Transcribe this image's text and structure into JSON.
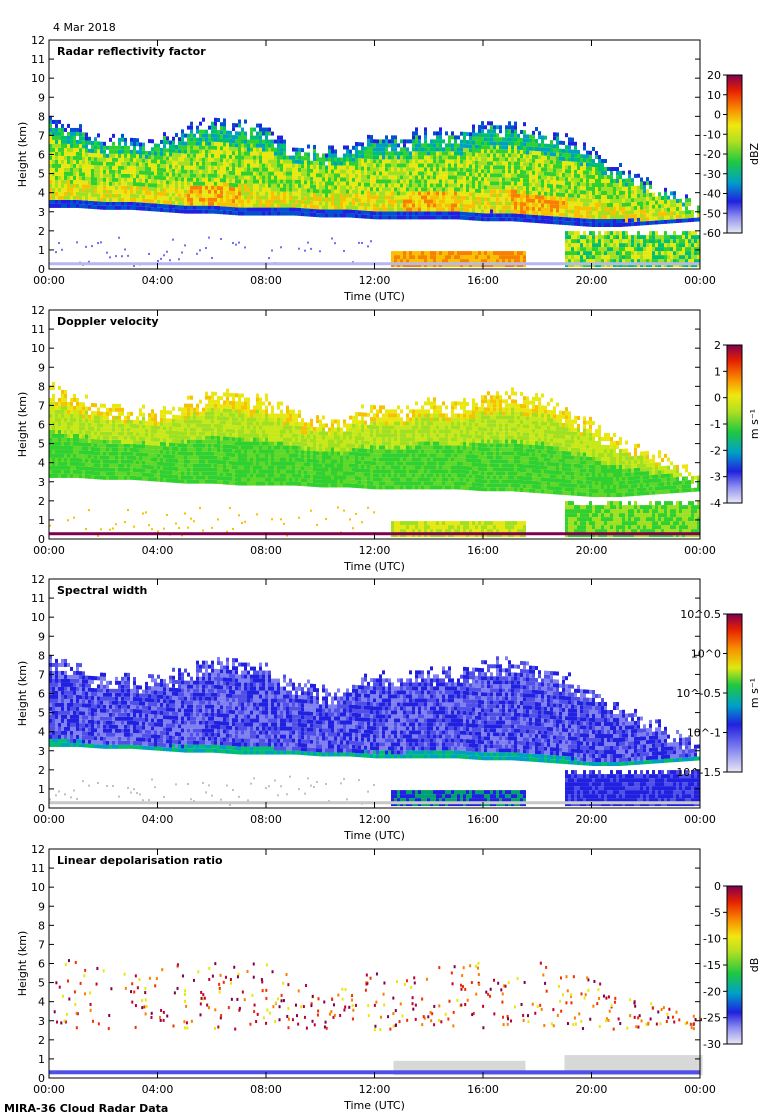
{
  "date_label": "4 Mar 2018",
  "footer": "MIRA-36 Cloud Radar Data",
  "colors": {
    "palette": [
      "#e0e0f0",
      "#b8b8f0",
      "#7070f0",
      "#2020e0",
      "#0050d0",
      "#00a0c0",
      "#00c070",
      "#30d030",
      "#a0e020",
      "#e8e810",
      "#f8c000",
      "#f88000",
      "#f03000",
      "#c00030",
      "#800050"
    ]
  },
  "chart_data": [
    {
      "type": "heatmap",
      "title": "Radar reflectivity factor",
      "xlabel": "Time (UTC)",
      "ylabel": "Height (km)",
      "xticks": [
        "00:00",
        "04:00",
        "08:00",
        "12:00",
        "16:00",
        "20:00",
        "00:00"
      ],
      "yticks": [
        "0",
        "1",
        "2",
        "3",
        "4",
        "5",
        "6",
        "7",
        "8",
        "9",
        "10",
        "11",
        "12"
      ],
      "ylim": [
        0,
        12
      ],
      "xlim_hours": [
        0,
        24
      ],
      "colorbar": {
        "label": "dBZ",
        "ticks": [
          "20",
          "10",
          "0",
          "-10",
          "-20",
          "-30",
          "-40",
          "-50",
          "-60"
        ]
      },
      "field": "Z"
    },
    {
      "type": "heatmap",
      "title": "Doppler velocity",
      "xlabel": "Time (UTC)",
      "ylabel": "Height (km)",
      "xticks": [
        "00:00",
        "04:00",
        "08:00",
        "12:00",
        "16:00",
        "20:00",
        "00:00"
      ],
      "yticks": [
        "0",
        "1",
        "2",
        "3",
        "4",
        "5",
        "6",
        "7",
        "8",
        "9",
        "10",
        "11",
        "12"
      ],
      "ylim": [
        0,
        12
      ],
      "xlim_hours": [
        0,
        24
      ],
      "colorbar": {
        "label": "m s⁻¹",
        "ticks": [
          "2",
          "1",
          "0",
          "-1",
          "-2",
          "-3",
          "-4"
        ]
      },
      "field": "V"
    },
    {
      "type": "heatmap",
      "title": "Spectral width",
      "xlabel": "Time (UTC)",
      "ylabel": "Height (km)",
      "xticks": [
        "00:00",
        "04:00",
        "08:00",
        "12:00",
        "16:00",
        "20:00",
        "00:00"
      ],
      "yticks": [
        "0",
        "1",
        "2",
        "3",
        "4",
        "5",
        "6",
        "7",
        "8",
        "9",
        "10",
        "11",
        "12"
      ],
      "ylim": [
        0,
        12
      ],
      "xlim_hours": [
        0,
        24
      ],
      "colorbar": {
        "label": "m s⁻¹",
        "ticks": [
          "10^0.5",
          "10^0",
          "10^-0.5",
          "10^-1",
          "10^-1.5"
        ]
      },
      "field": "W"
    },
    {
      "type": "heatmap",
      "title": "Linear depolarisation ratio",
      "xlabel": "Time (UTC)",
      "ylabel": "Height (km)",
      "xticks": [
        "00:00",
        "04:00",
        "08:00",
        "12:00",
        "16:00",
        "20:00",
        "00:00"
      ],
      "yticks": [
        "0",
        "1",
        "2",
        "3",
        "4",
        "5",
        "6",
        "7",
        "8",
        "9",
        "10",
        "11",
        "12"
      ],
      "ylim": [
        0,
        12
      ],
      "xlim_hours": [
        0,
        24
      ],
      "colorbar": {
        "label": "dB",
        "ticks": [
          "0",
          "-5",
          "-10",
          "-15",
          "-20",
          "-25",
          "-30"
        ]
      },
      "field": "LDR"
    }
  ],
  "cloud_profile": {
    "time_hours": [
      0,
      1,
      2,
      3,
      4,
      5,
      6,
      7,
      8,
      9,
      10,
      11,
      12,
      13,
      14,
      15,
      16,
      17,
      18,
      19,
      20,
      21,
      22,
      23,
      24
    ],
    "top_km": [
      7.9,
      7.3,
      6.8,
      6.8,
      6.7,
      7.2,
      7.7,
      7.6,
      7.2,
      6.5,
      6.2,
      6.3,
      6.9,
      6.8,
      7.2,
      7.0,
      7.5,
      7.6,
      7.3,
      6.8,
      6.0,
      5.2,
      4.5,
      3.9,
      3.3
    ],
    "base_km": [
      3.2,
      3.2,
      3.1,
      3.1,
      3.0,
      2.9,
      2.9,
      2.8,
      2.8,
      2.8,
      2.7,
      2.7,
      2.6,
      2.6,
      2.6,
      2.6,
      2.5,
      2.5,
      2.4,
      2.3,
      2.2,
      2.2,
      2.3,
      2.4,
      2.5
    ]
  }
}
